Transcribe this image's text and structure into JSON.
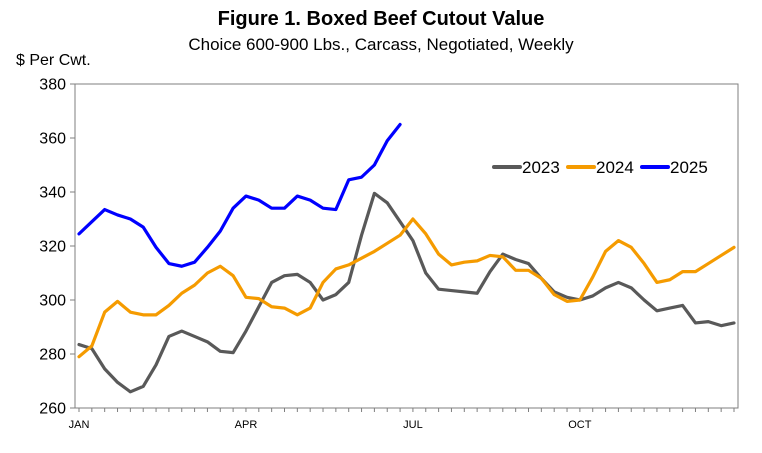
{
  "chart_data": {
    "type": "line",
    "title": "Figure 1. Boxed Beef Cutout Value",
    "subtitle": "Choice 600-900 Lbs., Carcass, Negotiated, Weekly",
    "ylabel": "$ Per Cwt.",
    "xlabel": "",
    "ylim": [
      260,
      380
    ],
    "yticks": [
      260,
      280,
      300,
      320,
      340,
      360,
      380
    ],
    "xlim": [
      1,
      52
    ],
    "xticks": [
      {
        "label": "JAN",
        "week": 1
      },
      {
        "label": "APR",
        "week": 14
      },
      {
        "label": "JUL",
        "week": 27
      },
      {
        "label": "OCT",
        "week": 40
      }
    ],
    "legend_position": "top-right",
    "series": [
      {
        "name": "2023",
        "color": "#595959",
        "values": [
          283.5,
          282,
          274.5,
          269.5,
          266,
          268,
          276,
          286.5,
          288.5,
          286.5,
          284.5,
          281,
          280.5,
          288.5,
          297.5,
          306.5,
          309,
          309.5,
          306.5,
          300,
          302,
          306.5,
          324,
          339.5,
          336,
          329,
          322,
          310,
          304,
          303.5,
          303,
          302.5,
          310.5,
          317,
          315,
          313.5,
          308,
          303,
          301,
          300,
          301.5,
          304.5,
          306.5,
          304.5,
          300,
          296,
          297,
          298,
          291.5,
          292,
          290.5,
          291.5
        ]
      },
      {
        "name": "2024",
        "color": "#F59B00",
        "values": [
          279,
          283,
          295.5,
          299.5,
          295.5,
          294.5,
          294.5,
          298,
          302.5,
          305.5,
          310,
          312.5,
          309,
          301,
          300.5,
          297.5,
          297,
          294.5,
          297,
          306.5,
          311.5,
          313,
          315.5,
          318,
          321,
          324,
          330,
          324.5,
          317,
          313,
          314,
          314.5,
          316.5,
          316,
          311,
          311,
          308,
          302,
          299.5,
          300,
          308.5,
          318,
          322,
          319.5,
          313.5,
          306.5,
          307.5,
          310.5,
          310.5,
          313.5,
          316.5,
          319.5
        ]
      },
      {
        "name": "2025",
        "color": "#0000FF",
        "values": [
          324.5,
          329,
          333.5,
          331.5,
          330,
          327,
          319.5,
          313.5,
          312.5,
          314,
          319.5,
          325.5,
          334,
          338.5,
          337,
          334,
          334,
          338.5,
          337,
          334,
          333.5,
          344.5,
          345.5,
          350,
          359,
          365
        ]
      }
    ]
  }
}
